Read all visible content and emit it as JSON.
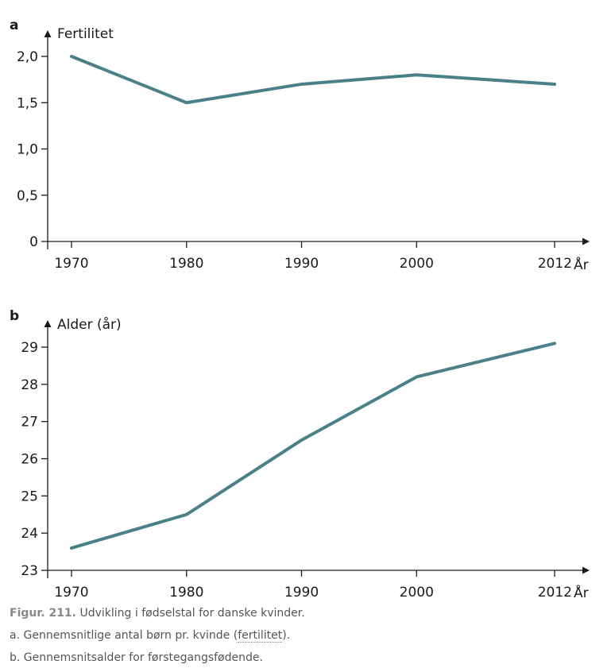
{
  "colors": {
    "series": "#4a8088",
    "axis": "#1a1a1a",
    "caption": "#555555"
  },
  "chart_data": [
    {
      "type": "line",
      "panel_letter": "a",
      "ylabel": "Fertilitet",
      "xlabel": "År",
      "x": [
        1970,
        1980,
        1990,
        2000,
        2012
      ],
      "x_tick_labels": [
        "1970",
        "1980",
        "1990",
        "2000",
        "2012"
      ],
      "series": [
        {
          "values": [
            2.0,
            1.5,
            1.7,
            1.8,
            1.7
          ]
        }
      ],
      "ylim": [
        0,
        2.0
      ],
      "y_ticks": [
        0,
        0.5,
        1.0,
        1.5,
        2.0
      ],
      "y_tick_labels": [
        "0",
        "0,5",
        "1,0",
        "1,5",
        "2,0"
      ],
      "grid": false
    },
    {
      "type": "line",
      "panel_letter": "b",
      "ylabel": "Alder (år)",
      "xlabel": "År",
      "x": [
        1970,
        1980,
        1990,
        2000,
        2012
      ],
      "x_tick_labels": [
        "1970",
        "1980",
        "1990",
        "2000",
        "2012"
      ],
      "series": [
        {
          "values": [
            23.6,
            24.5,
            26.5,
            28.2,
            29.1
          ]
        }
      ],
      "ylim": [
        23,
        29
      ],
      "y_ticks": [
        23,
        24,
        25,
        26,
        27,
        28,
        29
      ],
      "y_tick_labels": [
        "23",
        "24",
        "25",
        "26",
        "27",
        "28",
        "29"
      ],
      "grid": false
    }
  ],
  "caption": {
    "figure_label": "Figur. 211.",
    "title": "Udvikling i fødselstal for danske kvinder.",
    "line_a_before": "a. Gennemsnitlige antal børn pr. kvinde (",
    "line_a_link": "fertilitet",
    "line_a_after": ").",
    "line_b": "b. Gennemsnitsalder for førstegangsfødende."
  }
}
